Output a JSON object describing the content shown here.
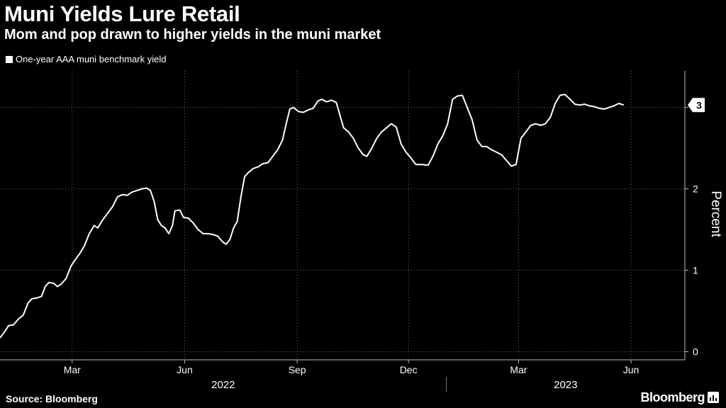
{
  "chart_data": {
    "type": "line",
    "title": "Muni Yields Lure Retail",
    "subtitle": "Mom and pop drawn to higher yields in the muni market",
    "ylabel": "Percent",
    "xlabel": "",
    "ylim": [
      -0.1,
      3.45
    ],
    "y_ticks": [
      0,
      1,
      2,
      3
    ],
    "x_start": "2022-01-01",
    "x_end": "2023-07-15",
    "x_ticks": [
      {
        "date": "2022-03-01",
        "label": "Mar"
      },
      {
        "date": "2022-06-01",
        "label": "Jun"
      },
      {
        "date": "2022-09-01",
        "label": "Sep"
      },
      {
        "date": "2022-12-01",
        "label": "Dec"
      },
      {
        "date": "2023-03-01",
        "label": "Mar"
      },
      {
        "date": "2023-06-01",
        "label": "Jun"
      }
    ],
    "years": [
      {
        "label": "2022",
        "from": "2022-01-01",
        "to": "2022-12-31"
      },
      {
        "label": "2023",
        "from": "2023-01-01",
        "to": "2023-07-15"
      }
    ],
    "grid": true,
    "legend_position": "top-left",
    "line_color": "#ffffff",
    "last_value_badge": "3",
    "series": [
      {
        "name": "One-year AAA muni benchmark yield",
        "points": [
          [
            "2022-01-01",
            0.17
          ],
          [
            "2022-01-05",
            0.25
          ],
          [
            "2022-01-08",
            0.32
          ],
          [
            "2022-01-12",
            0.33
          ],
          [
            "2022-01-16",
            0.4
          ],
          [
            "2022-01-20",
            0.45
          ],
          [
            "2022-01-24",
            0.6
          ],
          [
            "2022-01-27",
            0.65
          ],
          [
            "2022-01-31",
            0.66
          ],
          [
            "2022-02-04",
            0.68
          ],
          [
            "2022-02-07",
            0.8
          ],
          [
            "2022-02-10",
            0.85
          ],
          [
            "2022-02-14",
            0.84
          ],
          [
            "2022-02-17",
            0.8
          ],
          [
            "2022-02-20",
            0.83
          ],
          [
            "2022-02-24",
            0.9
          ],
          [
            "2022-02-28",
            1.05
          ],
          [
            "2022-03-03",
            1.12
          ],
          [
            "2022-03-07",
            1.2
          ],
          [
            "2022-03-11",
            1.3
          ],
          [
            "2022-03-15",
            1.45
          ],
          [
            "2022-03-19",
            1.55
          ],
          [
            "2022-03-22",
            1.52
          ],
          [
            "2022-03-26",
            1.62
          ],
          [
            "2022-03-30",
            1.7
          ],
          [
            "2022-04-03",
            1.78
          ],
          [
            "2022-04-07",
            1.9
          ],
          [
            "2022-04-11",
            1.93
          ],
          [
            "2022-04-15",
            1.92
          ],
          [
            "2022-04-19",
            1.96
          ],
          [
            "2022-04-23",
            1.98
          ],
          [
            "2022-04-27",
            2.0
          ],
          [
            "2022-05-01",
            2.01
          ],
          [
            "2022-05-04",
            1.98
          ],
          [
            "2022-05-07",
            1.85
          ],
          [
            "2022-05-10",
            1.62
          ],
          [
            "2022-05-13",
            1.55
          ],
          [
            "2022-05-16",
            1.52
          ],
          [
            "2022-05-19",
            1.45
          ],
          [
            "2022-05-22",
            1.55
          ],
          [
            "2022-05-24",
            1.73
          ],
          [
            "2022-05-28",
            1.74
          ],
          [
            "2022-05-31",
            1.65
          ],
          [
            "2022-06-04",
            1.64
          ],
          [
            "2022-06-08",
            1.58
          ],
          [
            "2022-06-12",
            1.5
          ],
          [
            "2022-06-16",
            1.45
          ],
          [
            "2022-06-20",
            1.45
          ],
          [
            "2022-06-24",
            1.44
          ],
          [
            "2022-06-28",
            1.42
          ],
          [
            "2022-07-02",
            1.35
          ],
          [
            "2022-07-05",
            1.32
          ],
          [
            "2022-07-08",
            1.38
          ],
          [
            "2022-07-11",
            1.52
          ],
          [
            "2022-07-14",
            1.6
          ],
          [
            "2022-07-17",
            1.9
          ],
          [
            "2022-07-20",
            2.15
          ],
          [
            "2022-07-23",
            2.2
          ],
          [
            "2022-07-27",
            2.25
          ],
          [
            "2022-07-31",
            2.27
          ],
          [
            "2022-08-04",
            2.31
          ],
          [
            "2022-08-08",
            2.32
          ],
          [
            "2022-08-12",
            2.4
          ],
          [
            "2022-08-16",
            2.48
          ],
          [
            "2022-08-20",
            2.6
          ],
          [
            "2022-08-23",
            2.8
          ],
          [
            "2022-08-26",
            2.98
          ],
          [
            "2022-08-29",
            3.0
          ],
          [
            "2022-09-02",
            2.95
          ],
          [
            "2022-09-06",
            2.94
          ],
          [
            "2022-09-10",
            2.97
          ],
          [
            "2022-09-14",
            2.99
          ],
          [
            "2022-09-18",
            3.08
          ],
          [
            "2022-09-21",
            3.1
          ],
          [
            "2022-09-25",
            3.07
          ],
          [
            "2022-09-29",
            3.09
          ],
          [
            "2022-10-03",
            3.06
          ],
          [
            "2022-10-06",
            2.9
          ],
          [
            "2022-10-09",
            2.75
          ],
          [
            "2022-10-13",
            2.7
          ],
          [
            "2022-10-17",
            2.62
          ],
          [
            "2022-10-21",
            2.5
          ],
          [
            "2022-10-25",
            2.42
          ],
          [
            "2022-10-28",
            2.4
          ],
          [
            "2022-11-01",
            2.5
          ],
          [
            "2022-11-05",
            2.62
          ],
          [
            "2022-11-09",
            2.7
          ],
          [
            "2022-11-13",
            2.75
          ],
          [
            "2022-11-17",
            2.8
          ],
          [
            "2022-11-21",
            2.76
          ],
          [
            "2022-11-25",
            2.55
          ],
          [
            "2022-11-29",
            2.45
          ],
          [
            "2022-12-03",
            2.38
          ],
          [
            "2022-12-07",
            2.3
          ],
          [
            "2022-12-12",
            2.3
          ],
          [
            "2022-12-17",
            2.29
          ],
          [
            "2022-12-21",
            2.4
          ],
          [
            "2022-12-25",
            2.55
          ],
          [
            "2022-12-29",
            2.65
          ],
          [
            "2023-01-02",
            2.8
          ],
          [
            "2023-01-06",
            3.1
          ],
          [
            "2023-01-10",
            3.14
          ],
          [
            "2023-01-14",
            3.15
          ],
          [
            "2023-01-18",
            3.0
          ],
          [
            "2023-01-22",
            2.85
          ],
          [
            "2023-01-26",
            2.6
          ],
          [
            "2023-01-30",
            2.52
          ],
          [
            "2023-02-03",
            2.52
          ],
          [
            "2023-02-07",
            2.48
          ],
          [
            "2023-02-11",
            2.45
          ],
          [
            "2023-02-15",
            2.42
          ],
          [
            "2023-02-19",
            2.35
          ],
          [
            "2023-02-23",
            2.28
          ],
          [
            "2023-02-27",
            2.3
          ],
          [
            "2023-03-03",
            2.62
          ],
          [
            "2023-03-07",
            2.7
          ],
          [
            "2023-03-11",
            2.78
          ],
          [
            "2023-03-15",
            2.8
          ],
          [
            "2023-03-19",
            2.78
          ],
          [
            "2023-03-23",
            2.8
          ],
          [
            "2023-03-27",
            2.88
          ],
          [
            "2023-03-31",
            3.05
          ],
          [
            "2023-04-04",
            3.15
          ],
          [
            "2023-04-08",
            3.16
          ],
          [
            "2023-04-12",
            3.1
          ],
          [
            "2023-04-16",
            3.04
          ],
          [
            "2023-04-20",
            3.03
          ],
          [
            "2023-04-24",
            3.04
          ],
          [
            "2023-04-28",
            3.02
          ],
          [
            "2023-05-02",
            3.01
          ],
          [
            "2023-05-06",
            2.99
          ],
          [
            "2023-05-10",
            2.98
          ],
          [
            "2023-05-14",
            3.0
          ],
          [
            "2023-05-18",
            3.02
          ],
          [
            "2023-05-22",
            3.05
          ],
          [
            "2023-05-26",
            3.03
          ]
        ]
      }
    ]
  },
  "footer": {
    "source": "Source: Bloomberg",
    "brand": "Bloomberg"
  }
}
